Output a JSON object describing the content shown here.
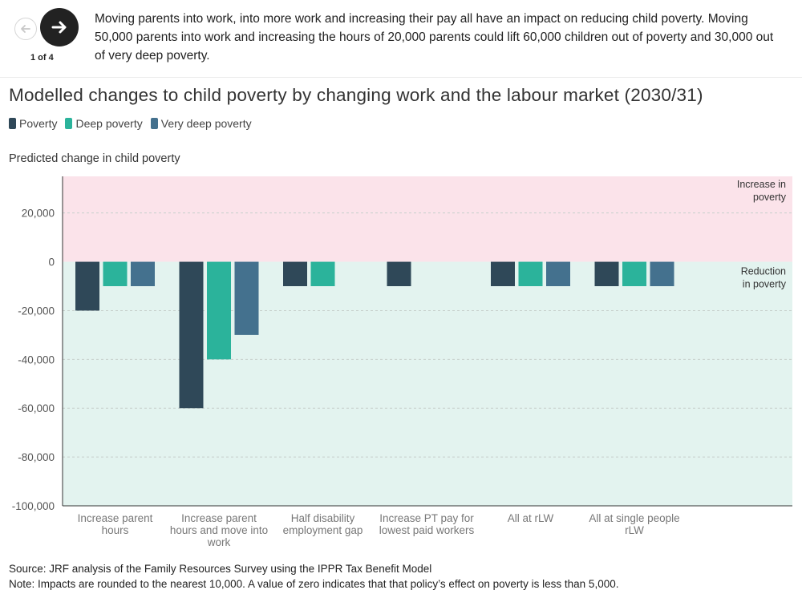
{
  "nav": {
    "prev_icon": "arrow-left-icon",
    "next_icon": "arrow-right-icon",
    "counter": "1 of 4"
  },
  "step_text": "Moving parents into work, into more work and increasing their pay all have an impact on reducing child poverty. Moving 50,000 parents into work and increasing the hours of 20,000 parents could lift 60,000 children out of poverty and 30,000 out of very deep poverty.",
  "chart_data": {
    "type": "bar",
    "title": "Modelled changes to child poverty by changing work and the labour market (2030/31)",
    "ylabel": "Predicted change in child poverty",
    "xlabel": "",
    "ylim": [
      -100000,
      35000
    ],
    "yticks": [
      20000,
      0,
      -20000,
      -40000,
      -60000,
      -80000,
      -100000
    ],
    "ytick_labels": [
      "20,000",
      "0",
      "-20,000",
      "-40,000",
      "-60,000",
      "-80,000",
      "-100,000"
    ],
    "categories": [
      [
        "Increase parent",
        "hours"
      ],
      [
        "Increase parent",
        "hours and move into",
        "work"
      ],
      [
        "Half disability",
        "employment gap"
      ],
      [
        "Increase PT pay for",
        "lowest paid workers"
      ],
      [
        "All at rLW"
      ],
      [
        "All at single people",
        "rLW"
      ]
    ],
    "series": [
      {
        "name": "Poverty",
        "color": "#2f4858",
        "values": [
          -20000,
          -60000,
          -10000,
          -10000,
          -10000,
          -10000
        ]
      },
      {
        "name": "Deep poverty",
        "color": "#2bb39b",
        "values": [
          -10000,
          -40000,
          -10000,
          0,
          -10000,
          -10000
        ]
      },
      {
        "name": "Very deep poverty",
        "color": "#44718e",
        "values": [
          -10000,
          -30000,
          0,
          0,
          -10000,
          -10000
        ]
      }
    ],
    "regions": [
      {
        "label_lines": [
          "Increase in",
          "poverty"
        ],
        "color": "#fbe3ea"
      },
      {
        "label_lines": [
          "Reduction",
          "in poverty"
        ],
        "color": "#e3f3ef"
      }
    ],
    "grid": true,
    "legend": "top-left"
  },
  "footer": {
    "source": "Source: JRF analysis of the Family Resources Survey using the IPPR Tax Benefit Model",
    "note": "Note: Impacts are rounded to the nearest 10,000. A value of zero indicates that that policy’s effect on poverty is less than 5,000."
  }
}
